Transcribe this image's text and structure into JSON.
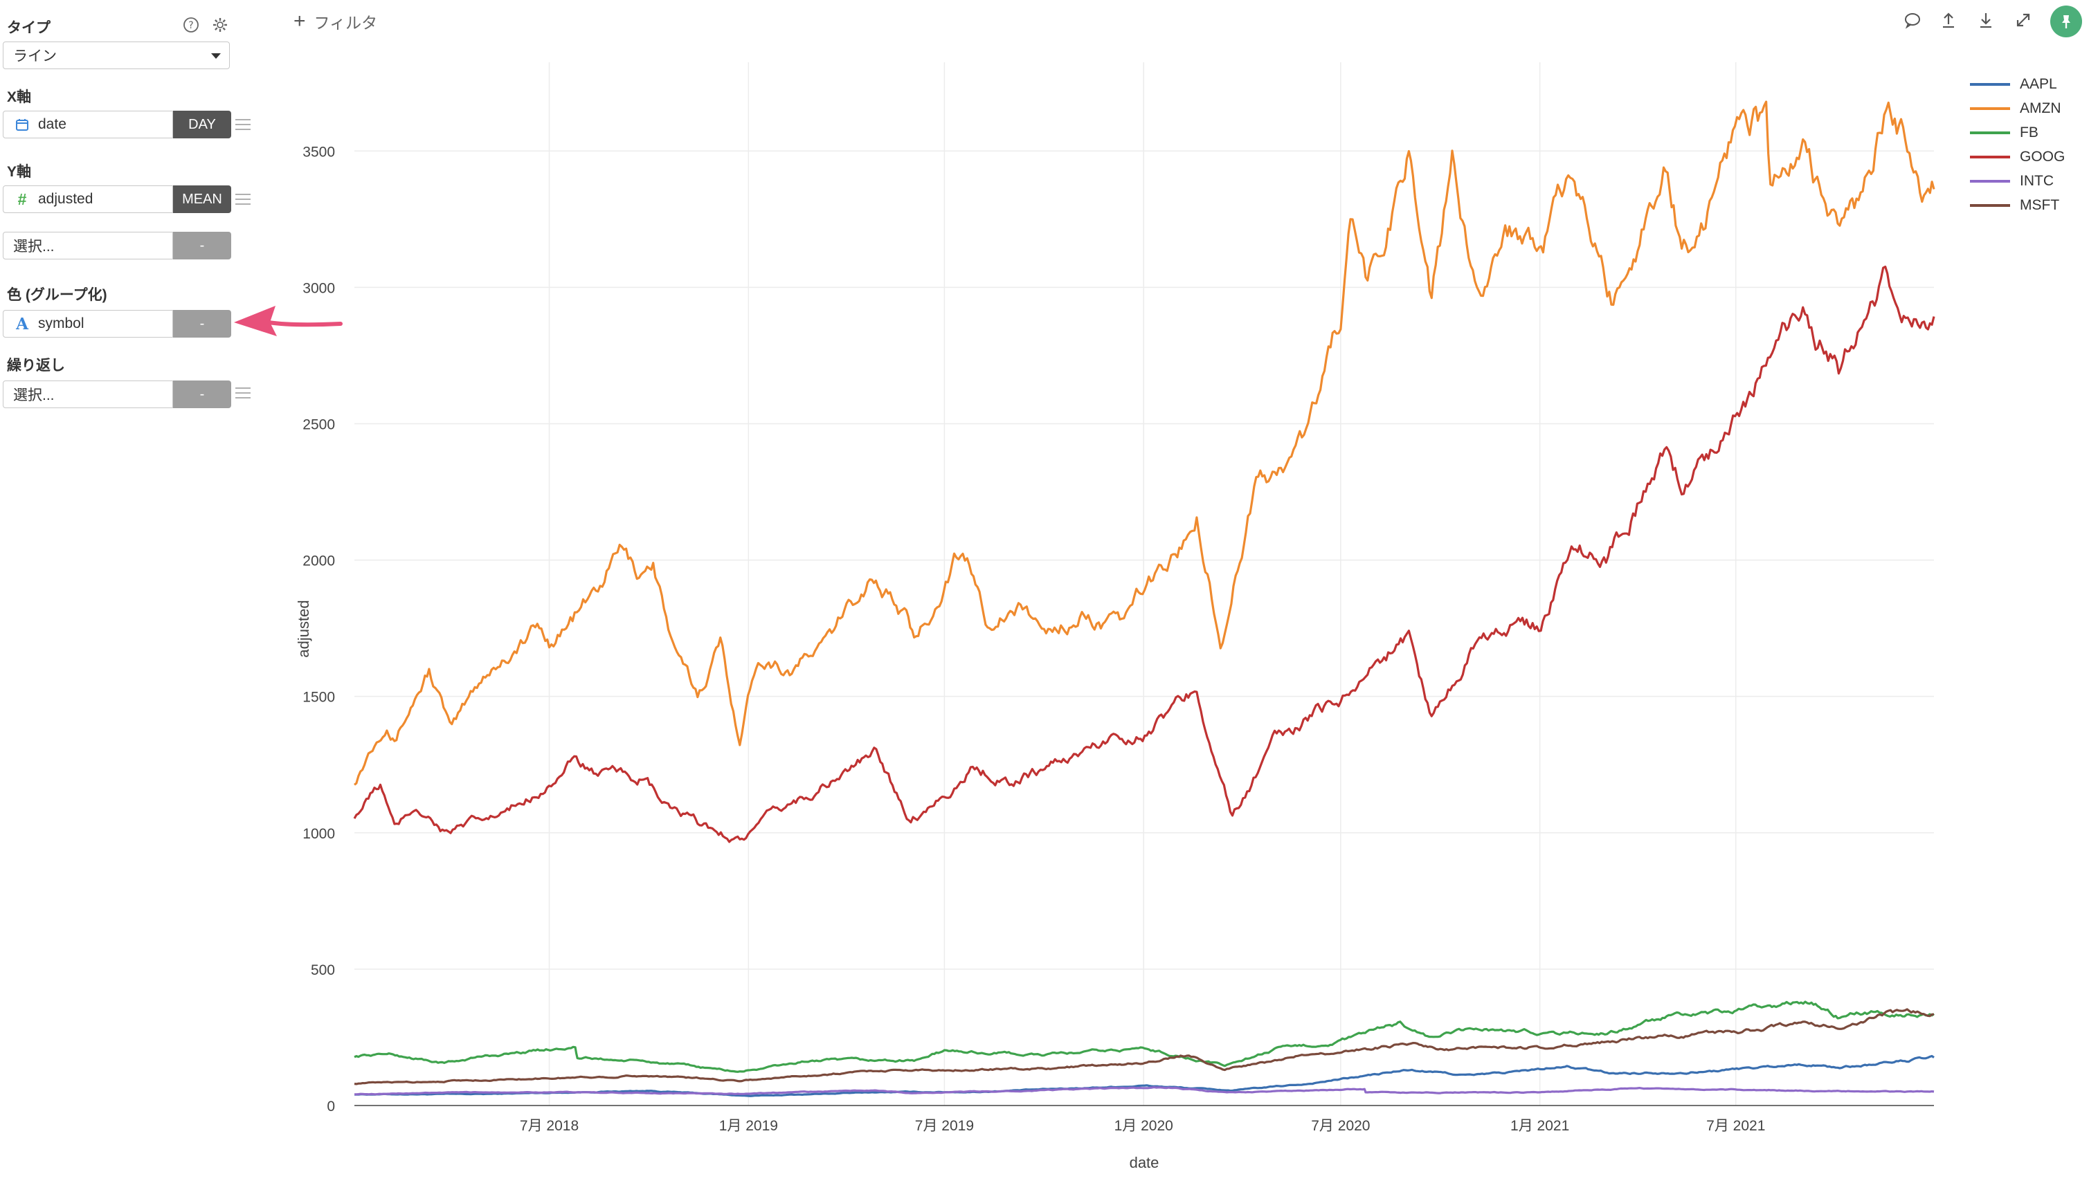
{
  "sidebar": {
    "type": {
      "label": "タイプ",
      "value": "ライン"
    },
    "x_axis": {
      "label": "X軸",
      "field": "date",
      "agg": "DAY"
    },
    "y_axis": {
      "label": "Y軸",
      "field": "adjusted",
      "agg": "MEAN",
      "extra_placeholder": "選択...",
      "extra_agg": "-"
    },
    "color": {
      "label": "色 (グループ化)",
      "field": "symbol",
      "agg": "-"
    },
    "repeat": {
      "label": "繰り返し",
      "placeholder": "選択...",
      "agg": "-"
    }
  },
  "topbar": {
    "filter_label": "フィルタ"
  },
  "icons": {
    "help": "question-circle-icon",
    "settings": "gear-icon",
    "comment": "comment-icon",
    "upload": "upload-icon",
    "download": "download-icon",
    "expand": "expand-icon",
    "pin": "pin-icon",
    "calendar": "calendar-icon",
    "hash": "hash-icon",
    "text": "text-type-icon"
  },
  "annotation": {
    "color": "#e8507a"
  },
  "chart_data": {
    "type": "line",
    "xlabel": "date",
    "ylabel": "adjusted",
    "x_range": [
      "2018-01-02",
      "2021-12-31"
    ],
    "ylim": [
      0,
      3800
    ],
    "y_ticks": [
      0,
      500,
      1000,
      1500,
      2000,
      2500,
      3000,
      3500
    ],
    "x_ticks": [
      {
        "date": "2018-07-01",
        "label": "7月 2018"
      },
      {
        "date": "2019-01-01",
        "label": "1月 2019"
      },
      {
        "date": "2019-07-01",
        "label": "7月 2019"
      },
      {
        "date": "2020-01-01",
        "label": "1月 2020"
      },
      {
        "date": "2020-07-01",
        "label": "7月 2020"
      },
      {
        "date": "2021-01-01",
        "label": "1月 2021"
      },
      {
        "date": "2021-07-01",
        "label": "7月 2021"
      }
    ],
    "grid": true,
    "legend_position": "top-right",
    "series": [
      {
        "name": "AAPL",
        "color": "#3a6fb0",
        "points": [
          [
            "2018-01-02",
            41
          ],
          [
            "2018-05-01",
            42
          ],
          [
            "2018-10-01",
            54
          ],
          [
            "2019-01-03",
            35
          ],
          [
            "2019-05-01",
            49
          ],
          [
            "2019-08-01",
            50
          ],
          [
            "2020-01-02",
            73
          ],
          [
            "2020-03-23",
            55
          ],
          [
            "2020-06-01",
            80
          ],
          [
            "2020-09-01",
            130
          ],
          [
            "2020-11-01",
            110
          ],
          [
            "2021-01-26",
            142
          ],
          [
            "2021-03-08",
            118
          ],
          [
            "2021-06-01",
            124
          ],
          [
            "2021-09-01",
            152
          ],
          [
            "2021-10-05",
            139
          ],
          [
            "2021-12-31",
            176
          ]
        ]
      },
      {
        "name": "AMZN",
        "color": "#ef8a2e",
        "points": [
          [
            "2018-01-02",
            1190
          ],
          [
            "2018-01-15",
            1300
          ],
          [
            "2018-02-01",
            1430
          ],
          [
            "2018-02-08",
            1350
          ],
          [
            "2018-03-12",
            1600
          ],
          [
            "2018-04-02",
            1370
          ],
          [
            "2018-05-01",
            1580
          ],
          [
            "2018-06-20",
            1750
          ],
          [
            "2018-07-01",
            1700
          ],
          [
            "2018-08-15",
            1890
          ],
          [
            "2018-09-04",
            2040
          ],
          [
            "2018-09-20",
            1950
          ],
          [
            "2018-10-05",
            2000
          ],
          [
            "2018-10-25",
            1650
          ],
          [
            "2018-11-15",
            1500
          ],
          [
            "2018-12-06",
            1700
          ],
          [
            "2018-12-24",
            1344
          ],
          [
            "2019-01-10",
            1660
          ],
          [
            "2019-02-10",
            1600
          ],
          [
            "2019-03-15",
            1700
          ],
          [
            "2019-04-25",
            1950
          ],
          [
            "2019-05-25",
            1800
          ],
          [
            "2019-06-03",
            1690
          ],
          [
            "2019-07-10",
            2000
          ],
          [
            "2019-07-26",
            1950
          ],
          [
            "2019-08-08",
            1790
          ],
          [
            "2019-09-15",
            1820
          ],
          [
            "2019-10-01",
            1730
          ],
          [
            "2019-11-05",
            1800
          ],
          [
            "2019-12-10",
            1750
          ],
          [
            "2020-01-02",
            1900
          ],
          [
            "2020-02-03",
            2040
          ],
          [
            "2020-02-19",
            2170
          ],
          [
            "2020-03-02",
            1950
          ],
          [
            "2020-03-12",
            1680
          ],
          [
            "2020-03-26",
            1950
          ],
          [
            "2020-04-14",
            2300
          ],
          [
            "2020-05-01",
            2300
          ],
          [
            "2020-06-01",
            2470
          ],
          [
            "2020-07-01",
            2900
          ],
          [
            "2020-07-10",
            3200
          ],
          [
            "2020-07-24",
            3000
          ],
          [
            "2020-08-10",
            3150
          ],
          [
            "2020-09-02",
            3530
          ],
          [
            "2020-09-23",
            2960
          ],
          [
            "2020-10-12",
            3440
          ],
          [
            "2020-11-02",
            3000
          ],
          [
            "2020-11-30",
            3200
          ],
          [
            "2021-01-04",
            3200
          ],
          [
            "2021-02-02",
            3380
          ],
          [
            "2021-03-08",
            2960
          ],
          [
            "2021-04-05",
            3220
          ],
          [
            "2021-04-29",
            3470
          ],
          [
            "2021-05-12",
            3150
          ],
          [
            "2021-06-01",
            3230
          ],
          [
            "2021-07-08",
            3720
          ],
          [
            "2021-07-29",
            3600
          ],
          [
            "2021-08-02",
            3330
          ],
          [
            "2021-09-01",
            3500
          ],
          [
            "2021-10-05",
            3200
          ],
          [
            "2021-11-01",
            3380
          ],
          [
            "2021-11-19",
            3700
          ],
          [
            "2021-12-20",
            3370
          ],
          [
            "2021-12-31",
            3360
          ]
        ]
      },
      {
        "name": "FB",
        "color": "#3fa34d",
        "points": [
          [
            "2018-01-02",
            181
          ],
          [
            "2018-02-01",
            190
          ],
          [
            "2018-03-26",
            155
          ],
          [
            "2018-05-01",
            180
          ],
          [
            "2018-07-25",
            217
          ],
          [
            "2018-07-27",
            175
          ],
          [
            "2018-10-01",
            160
          ],
          [
            "2018-12-24",
            124
          ],
          [
            "2019-03-01",
            165
          ],
          [
            "2019-06-03",
            165
          ],
          [
            "2019-07-01",
            200
          ],
          [
            "2019-10-01",
            185
          ],
          [
            "2020-01-02",
            209
          ],
          [
            "2020-03-16",
            146
          ],
          [
            "2020-05-01",
            205
          ],
          [
            "2020-06-25",
            230
          ],
          [
            "2020-08-25",
            302
          ],
          [
            "2020-09-21",
            250
          ],
          [
            "2020-11-01",
            280
          ],
          [
            "2021-01-04",
            268
          ],
          [
            "2021-03-04",
            265
          ],
          [
            "2021-04-30",
            325
          ],
          [
            "2021-06-01",
            330
          ],
          [
            "2021-09-07",
            382
          ],
          [
            "2021-10-05",
            326
          ],
          [
            "2021-11-01",
            340
          ],
          [
            "2021-12-31",
            336
          ]
        ]
      },
      {
        "name": "GOOG",
        "color": "#c03232",
        "points": [
          [
            "2018-01-02",
            1065
          ],
          [
            "2018-01-26",
            1175
          ],
          [
            "2018-02-08",
            1010
          ],
          [
            "2018-02-28",
            1100
          ],
          [
            "2018-03-28",
            1003
          ],
          [
            "2018-04-30",
            1040
          ],
          [
            "2018-05-25",
            1075
          ],
          [
            "2018-07-26",
            1265
          ],
          [
            "2018-08-15",
            1210
          ],
          [
            "2018-09-26",
            1200
          ],
          [
            "2018-10-15",
            1100
          ],
          [
            "2018-11-15",
            1030
          ],
          [
            "2018-12-24",
            976
          ],
          [
            "2019-02-08",
            1100
          ],
          [
            "2019-04-29",
            1290
          ],
          [
            "2019-05-31",
            1050
          ],
          [
            "2019-06-10",
            1080
          ],
          [
            "2019-07-29",
            1240
          ],
          [
            "2019-09-01",
            1190
          ],
          [
            "2019-10-15",
            1260
          ],
          [
            "2019-12-10",
            1360
          ],
          [
            "2020-01-02",
            1370
          ],
          [
            "2020-02-19",
            1525
          ],
          [
            "2020-03-23",
            1056
          ],
          [
            "2020-05-01",
            1330
          ],
          [
            "2020-07-01",
            1500
          ],
          [
            "2020-09-02",
            1728
          ],
          [
            "2020-09-23",
            1420
          ],
          [
            "2020-11-10",
            1760
          ],
          [
            "2020-12-31",
            1750
          ],
          [
            "2021-02-03",
            2060
          ],
          [
            "2021-03-05",
            2010
          ],
          [
            "2021-04-28",
            2400
          ],
          [
            "2021-05-12",
            2260
          ],
          [
            "2021-07-06",
            2580
          ],
          [
            "2021-09-01",
            2900
          ],
          [
            "2021-10-04",
            2700
          ],
          [
            "2021-11-18",
            3014
          ],
          [
            "2021-12-20",
            2850
          ],
          [
            "2021-12-31",
            2893
          ]
        ]
      },
      {
        "name": "INTC",
        "color": "#8e6ac8",
        "points": [
          [
            "2018-01-02",
            42
          ],
          [
            "2018-06-01",
            50
          ],
          [
            "2018-12-24",
            43
          ],
          [
            "2019-04-24",
            56
          ],
          [
            "2019-06-01",
            45
          ],
          [
            "2020-01-24",
            67
          ],
          [
            "2020-03-16",
            47
          ],
          [
            "2020-07-23",
            60
          ],
          [
            "2020-07-24",
            48
          ],
          [
            "2021-01-01",
            48
          ],
          [
            "2021-04-01",
            64
          ],
          [
            "2021-10-01",
            53
          ],
          [
            "2021-12-31",
            51
          ]
        ]
      },
      {
        "name": "MSFT",
        "color": "#7b4a3c",
        "points": [
          [
            "2018-01-02",
            81
          ],
          [
            "2018-06-01",
            97
          ],
          [
            "2018-10-01",
            110
          ],
          [
            "2018-12-24",
            92
          ],
          [
            "2019-04-26",
            127
          ],
          [
            "2019-06-01",
            130
          ],
          [
            "2019-10-01",
            135
          ],
          [
            "2020-01-02",
            156
          ],
          [
            "2020-02-10",
            185
          ],
          [
            "2020-03-16",
            133
          ],
          [
            "2020-06-01",
            185
          ],
          [
            "2020-09-02",
            227
          ],
          [
            "2020-10-01",
            205
          ],
          [
            "2021-01-04",
            215
          ],
          [
            "2021-04-01",
            245
          ],
          [
            "2021-07-01",
            270
          ],
          [
            "2021-09-01",
            300
          ],
          [
            "2021-10-05",
            286
          ],
          [
            "2021-11-19",
            340
          ],
          [
            "2021-12-31",
            334
          ]
        ]
      }
    ]
  }
}
